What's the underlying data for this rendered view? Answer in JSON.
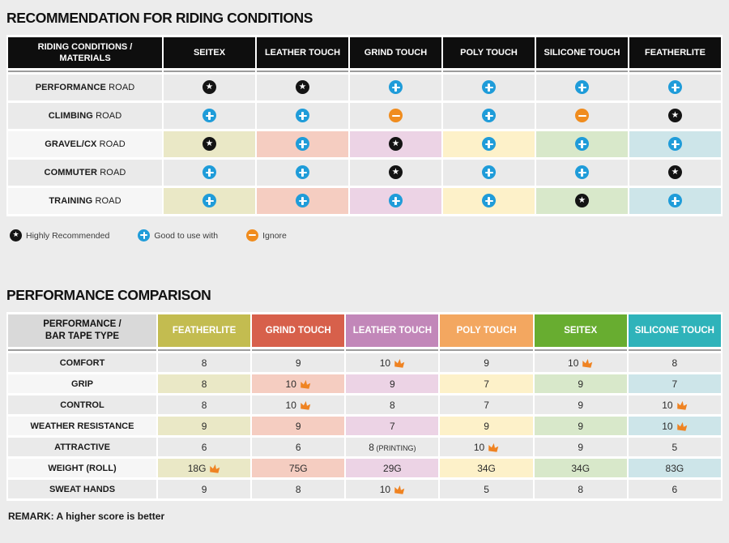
{
  "colors": {
    "page_bg": "#ececec",
    "table1_header_bg": "#0e0e0e",
    "label_header_bg": "#d9d9d9",
    "row_gray": "#eaeaea",
    "row_light": "#f6f6f6",
    "separator_line": "#9c9c9c",
    "star": "#141414",
    "plus": "#1f9cd9",
    "minus": "#f08c1e",
    "crown": "#ef8322",
    "column_tints": [
      "#eae8c6",
      "#f5cdc1",
      "#ecd3e5",
      "#fdf1c9",
      "#d8e8ca",
      "#cde5e9"
    ]
  },
  "riding_table": {
    "title": "RECOMMENDATION FOR RIDING CONDITIONS",
    "corner_header": "RIDING CONDITIONS /\nMATERIALS",
    "columns": [
      "SEITEX",
      "LEATHER TOUCH",
      "GRIND TOUCH",
      "POLY TOUCH",
      "SILICONE TOUCH",
      "FEATHERLITE"
    ],
    "rows": [
      {
        "label_bold": "PERFORMANCE",
        "label_rest": "ROAD",
        "tinted": false,
        "cells": [
          "star",
          "star",
          "plus",
          "plus",
          "plus",
          "plus"
        ]
      },
      {
        "label_bold": "CLIMBING",
        "label_rest": "ROAD",
        "tinted": false,
        "cells": [
          "plus",
          "plus",
          "minus",
          "plus",
          "minus",
          "star"
        ]
      },
      {
        "label_bold": "GRAVEL/CX",
        "label_rest": "ROAD",
        "tinted": true,
        "cells": [
          "star",
          "plus",
          "star",
          "plus",
          "plus",
          "plus"
        ]
      },
      {
        "label_bold": "COMMUTER",
        "label_rest": "ROAD",
        "tinted": false,
        "cells": [
          "plus",
          "plus",
          "star",
          "plus",
          "plus",
          "star"
        ]
      },
      {
        "label_bold": "TRAINING",
        "label_rest": "ROAD",
        "tinted": true,
        "cells": [
          "plus",
          "plus",
          "plus",
          "plus",
          "star",
          "plus"
        ]
      }
    ],
    "legend": [
      {
        "icon": "star",
        "label": "Highly Recommended"
      },
      {
        "icon": "plus",
        "label": "Good to use with"
      },
      {
        "icon": "minus",
        "label": "Ignore"
      }
    ]
  },
  "performance_table": {
    "title": "PERFORMANCE COMPARISON",
    "corner_header": "PERFORMANCE /\nBAR TAPE TYPE",
    "columns": [
      {
        "label": "FEATHERLITE",
        "color": "#c3bc50"
      },
      {
        "label": "GRIND TOUCH",
        "color": "#d7604b"
      },
      {
        "label": "LEATHER TOUCH",
        "color": "#c287b9"
      },
      {
        "label": "POLY TOUCH",
        "color": "#f3a760"
      },
      {
        "label": "SEITEX",
        "color": "#68ad30"
      },
      {
        "label": "SILICONE TOUCH",
        "color": "#2fb3ba"
      }
    ],
    "rows": [
      {
        "label": "COMFORT",
        "tinted": false,
        "cells": [
          {
            "text": "8"
          },
          {
            "text": "9"
          },
          {
            "text": "10",
            "crown": true
          },
          {
            "text": "9"
          },
          {
            "text": "10",
            "crown": true
          },
          {
            "text": "8"
          }
        ]
      },
      {
        "label": "GRIP",
        "tinted": true,
        "cells": [
          {
            "text": "8"
          },
          {
            "text": "10",
            "crown": true
          },
          {
            "text": "9"
          },
          {
            "text": "7"
          },
          {
            "text": "9"
          },
          {
            "text": "7"
          }
        ]
      },
      {
        "label": "CONTROL",
        "tinted": false,
        "cells": [
          {
            "text": "8"
          },
          {
            "text": "10",
            "crown": true
          },
          {
            "text": "8"
          },
          {
            "text": "7"
          },
          {
            "text": "9"
          },
          {
            "text": "10",
            "crown": true
          }
        ]
      },
      {
        "label": "WEATHER RESISTANCE",
        "tinted": true,
        "cells": [
          {
            "text": "9"
          },
          {
            "text": "9"
          },
          {
            "text": "7"
          },
          {
            "text": "9"
          },
          {
            "text": "9"
          },
          {
            "text": "10",
            "crown": true
          }
        ]
      },
      {
        "label": "ATTRACTIVE",
        "tinted": false,
        "cells": [
          {
            "text": "6"
          },
          {
            "text": "6"
          },
          {
            "text": "8",
            "suffix": "(PRINTING)"
          },
          {
            "text": "10",
            "crown": true
          },
          {
            "text": "9"
          },
          {
            "text": "5"
          }
        ]
      },
      {
        "label": "WEIGHT (ROLL)",
        "tinted": true,
        "cells": [
          {
            "text": "18G",
            "crown": true
          },
          {
            "text": "75G"
          },
          {
            "text": "29G"
          },
          {
            "text": "34G"
          },
          {
            "text": "34G"
          },
          {
            "text": "83G"
          }
        ]
      },
      {
        "label": "SWEAT HANDS",
        "tinted": false,
        "cells": [
          {
            "text": "9"
          },
          {
            "text": "8"
          },
          {
            "text": "10",
            "crown": true
          },
          {
            "text": "5"
          },
          {
            "text": "8"
          },
          {
            "text": "6"
          }
        ]
      }
    ],
    "remark": "REMARK: A higher score is better"
  }
}
